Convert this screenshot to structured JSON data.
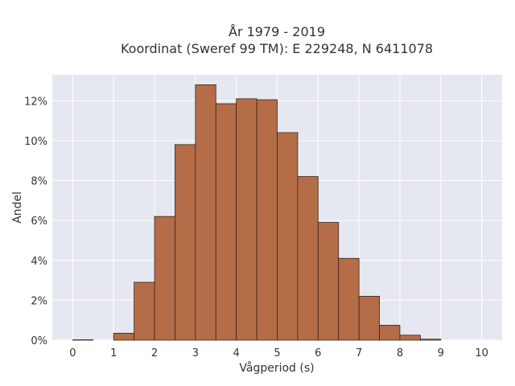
{
  "chart_data": {
    "type": "bar",
    "title": "År 1979 - 2019",
    "subtitle": "Koordinat (Sweref 99 TM): E 229248, N 6411078",
    "xlabel": "Vågperiod (s)",
    "ylabel": "Andel",
    "xlim": [
      -0.5,
      10.5
    ],
    "ylim": [
      0,
      13.3
    ],
    "x_ticks": [
      0,
      1,
      2,
      3,
      4,
      5,
      6,
      7,
      8,
      9,
      10
    ],
    "y_ticks": [
      0,
      2,
      4,
      6,
      8,
      10,
      12
    ],
    "y_tick_labels": [
      "0%",
      "2%",
      "4%",
      "6%",
      "8%",
      "10%",
      "12%"
    ],
    "bin_width": 0.5,
    "bins": [
      {
        "x0": 0.0,
        "x1": 0.5,
        "value": 0.02
      },
      {
        "x0": 0.5,
        "x1": 1.0,
        "value": 0.0
      },
      {
        "x0": 1.0,
        "x1": 1.5,
        "value": 0.35
      },
      {
        "x0": 1.5,
        "x1": 2.0,
        "value": 2.9
      },
      {
        "x0": 2.0,
        "x1": 2.5,
        "value": 6.2
      },
      {
        "x0": 2.5,
        "x1": 3.0,
        "value": 9.8
      },
      {
        "x0": 3.0,
        "x1": 3.5,
        "value": 12.8
      },
      {
        "x0": 3.5,
        "x1": 4.0,
        "value": 11.85
      },
      {
        "x0": 4.0,
        "x1": 4.5,
        "value": 12.1
      },
      {
        "x0": 4.5,
        "x1": 5.0,
        "value": 12.05
      },
      {
        "x0": 5.0,
        "x1": 5.5,
        "value": 10.4
      },
      {
        "x0": 5.5,
        "x1": 6.0,
        "value": 8.2
      },
      {
        "x0": 6.0,
        "x1": 6.5,
        "value": 5.9
      },
      {
        "x0": 6.5,
        "x1": 7.0,
        "value": 4.1
      },
      {
        "x0": 7.0,
        "x1": 7.5,
        "value": 2.2
      },
      {
        "x0": 7.5,
        "x1": 8.0,
        "value": 0.75
      },
      {
        "x0": 8.0,
        "x1": 8.5,
        "value": 0.25
      },
      {
        "x0": 8.5,
        "x1": 9.0,
        "value": 0.05
      }
    ],
    "grid": true,
    "colors": {
      "bar_fill": "#b56d48",
      "bar_stroke": "#3a2418",
      "plot_bg": "#e5e8f1",
      "grid": "#ffffff"
    }
  }
}
